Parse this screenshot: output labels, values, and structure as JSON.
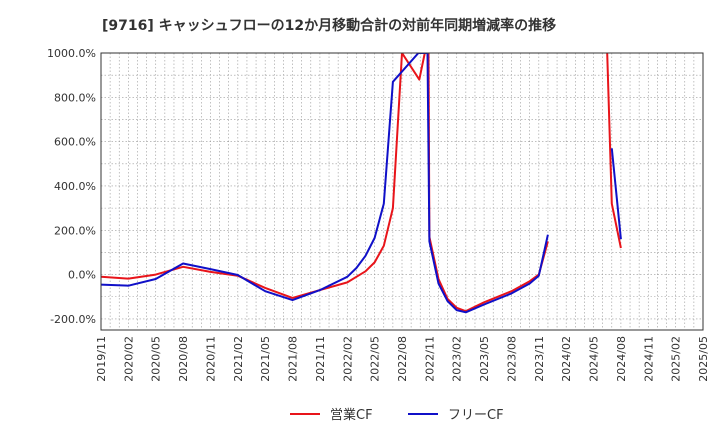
{
  "chart_data": {
    "type": "line",
    "title": "[9716]  キャッシュフローの12か月移動合計の対前年同期増減率の推移",
    "xlabel": "",
    "ylabel": "",
    "ylim": [
      -250,
      1000
    ],
    "yticks": [
      -200,
      0,
      200,
      400,
      600,
      800,
      1000
    ],
    "ytick_labels": [
      "-200.0%",
      "0.0%",
      "200.0%",
      "400.0%",
      "600.0%",
      "800.0%",
      "1000.0%"
    ],
    "xtick_labels": [
      "2019/11",
      "2020/02",
      "2020/05",
      "2020/08",
      "2020/11",
      "2021/02",
      "2021/05",
      "2021/08",
      "2021/11",
      "2022/02",
      "2022/05",
      "2022/08",
      "2022/11",
      "2023/02",
      "2023/05",
      "2023/08",
      "2023/11",
      "2024/02",
      "2024/05",
      "2024/08",
      "2024/11",
      "2025/02",
      "2025/05"
    ],
    "x_start": "2019/11",
    "x_months": 66,
    "grid": true,
    "legend_position": "bottom",
    "series": [
      {
        "name": "営業CF",
        "color": "#e8141a",
        "points": [
          [
            0,
            -10
          ],
          [
            3,
            -18
          ],
          [
            6,
            0
          ],
          [
            9,
            35
          ],
          [
            12,
            12
          ],
          [
            15,
            -5
          ],
          [
            18,
            -60
          ],
          [
            21,
            -105
          ],
          [
            24,
            -70
          ],
          [
            27,
            -35
          ],
          [
            28,
            -10
          ],
          [
            29,
            15
          ],
          [
            30,
            55
          ],
          [
            31,
            130
          ],
          [
            32,
            300
          ],
          [
            33,
            1000
          ],
          [
            34.9,
            880
          ],
          [
            35.5,
            1000
          ],
          [
            35.9,
            1000
          ],
          [
            36,
            170
          ],
          [
            37,
            -20
          ],
          [
            38,
            -110
          ],
          [
            39,
            -150
          ],
          [
            40,
            -165
          ],
          [
            42,
            -125
          ],
          [
            45,
            -75
          ],
          [
            47,
            -30
          ],
          [
            48,
            0
          ],
          [
            49,
            150
          ],
          [
            55.5,
            1000
          ],
          [
            56,
            320
          ],
          [
            57,
            120
          ]
        ]
      },
      {
        "name": "フリーCF",
        "color": "#1010c8",
        "points": [
          [
            0,
            -45
          ],
          [
            3,
            -50
          ],
          [
            6,
            -20
          ],
          [
            9,
            50
          ],
          [
            12,
            25
          ],
          [
            15,
            -2
          ],
          [
            18,
            -75
          ],
          [
            21,
            -115
          ],
          [
            24,
            -70
          ],
          [
            27,
            -10
          ],
          [
            28,
            30
          ],
          [
            29,
            85
          ],
          [
            30,
            165
          ],
          [
            31,
            320
          ],
          [
            32,
            870
          ],
          [
            34.8,
            1000
          ],
          [
            35.8,
            1000
          ],
          [
            36,
            150
          ],
          [
            37,
            -40
          ],
          [
            38,
            -120
          ],
          [
            39,
            -160
          ],
          [
            40,
            -170
          ],
          [
            42,
            -135
          ],
          [
            45,
            -85
          ],
          [
            47,
            -40
          ],
          [
            48,
            -5
          ],
          [
            49,
            180
          ],
          [
            56,
            570
          ],
          [
            57,
            160
          ]
        ]
      }
    ]
  }
}
